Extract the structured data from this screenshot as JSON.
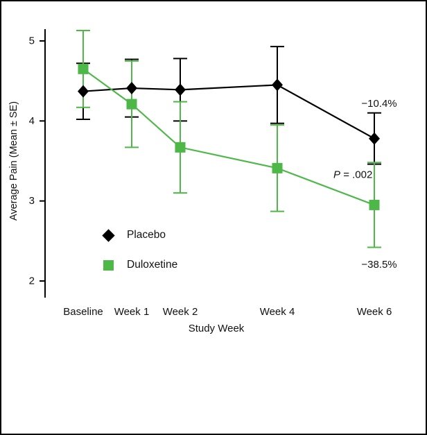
{
  "figure": {
    "background_color": "#ffffff",
    "border_color": "#000000"
  },
  "chart_data": {
    "type": "line",
    "title": "",
    "xlabel": "Study Week",
    "ylabel": "Average Pain (Mean ± SE)",
    "categories": [
      "Baseline",
      "Week 1",
      "Week 2",
      "Week 4",
      "Week 6"
    ],
    "x": [
      0,
      1,
      2,
      4,
      6
    ],
    "yticks": [
      2,
      3,
      4,
      5
    ],
    "ylim": [
      1.8,
      5.35
    ],
    "grid": false,
    "error_bars": true,
    "legend_position": "lower-left-inside",
    "series": [
      {
        "name": "Placebo",
        "marker": "diamond",
        "color": "#000000",
        "values": [
          4.37,
          4.41,
          4.39,
          4.45,
          3.78
        ],
        "se": [
          0.35,
          0.36,
          0.39,
          0.48,
          0.32
        ]
      },
      {
        "name": "Duloxetine",
        "marker": "square",
        "color": "#4DB848",
        "values": [
          4.65,
          4.21,
          3.67,
          3.41,
          2.95
        ],
        "se": [
          0.48,
          0.54,
          0.57,
          0.54,
          0.53
        ]
      }
    ],
    "annotations": [
      {
        "x": 6.1,
        "y": 4.22,
        "parts": [
          {
            "text": "−10.4%",
            "italic": false
          }
        ]
      },
      {
        "x": 5.56,
        "y": 3.33,
        "parts": [
          {
            "text": "P",
            "italic": true
          },
          {
            "text": " = .002",
            "italic": false
          }
        ]
      },
      {
        "x": 6.1,
        "y": 2.21,
        "parts": [
          {
            "text": "−38.5%",
            "italic": false
          }
        ]
      }
    ]
  }
}
